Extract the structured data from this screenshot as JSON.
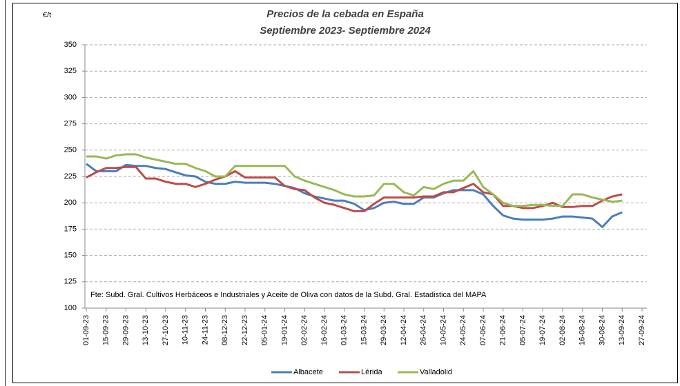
{
  "chart_data": {
    "type": "line",
    "title": "Precios de la cebada en España",
    "subtitle": "Septiembre 2023- Septiembre 2024",
    "y_label": "€/t",
    "annotation": "Fte: Subd. Gral. Cultivos Herbáceos e Industriales y Aceite de Oliva con datos de la Subd. Gral. Estadistica del MAPA",
    "categories": [
      "01-09-23",
      null,
      "15-09-23",
      null,
      "29-09-23",
      null,
      "13-10-23",
      null,
      "27-10-23",
      null,
      "10-11-23",
      null,
      "24-11-23",
      null,
      "08-12-23",
      null,
      "22-12-23",
      null,
      "05-01-24",
      null,
      "19-01-24",
      null,
      "02-02-24",
      null,
      "16-02-24",
      null,
      "01-03-24",
      null,
      "15-03-24",
      null,
      "29-03-24",
      null,
      "12-04-24",
      null,
      "26-04-24",
      null,
      "10-05-24",
      null,
      "24-05-24",
      null,
      "07-06-24",
      null,
      "21-06-24",
      null,
      "05-07-24",
      null,
      "19-07-24",
      null,
      "02-08-24",
      null,
      "16-08-24",
      null,
      "30-08-24",
      null,
      "13-09-24",
      null,
      "27-09-24"
    ],
    "series": [
      {
        "name": "Albacete",
        "color": "#4a7ebb",
        "values": [
          237,
          230,
          230,
          230,
          236,
          235,
          235,
          233,
          232,
          229,
          226,
          225,
          220,
          218,
          218,
          220,
          219,
          219,
          219,
          218,
          216,
          214,
          209,
          206,
          204,
          202,
          202,
          199,
          193,
          195,
          200,
          201,
          199,
          199,
          205,
          205,
          209,
          212,
          212,
          212,
          208,
          197,
          188,
          185,
          184,
          184,
          184,
          185,
          187,
          187,
          186,
          185,
          177,
          187,
          191,
          null,
          null
        ]
      },
      {
        "name": "Lérida",
        "color": "#be4b48",
        "values": [
          224,
          229,
          233,
          233,
          234,
          234,
          223,
          223,
          220,
          218,
          218,
          215,
          218,
          222,
          225,
          230,
          224,
          224,
          224,
          224,
          216,
          213,
          212,
          205,
          200,
          198,
          195,
          192,
          192,
          199,
          205,
          205,
          205,
          205,
          206,
          206,
          210,
          210,
          214,
          218,
          210,
          208,
          197,
          197,
          195,
          195,
          197,
          200,
          196,
          196,
          197,
          197,
          202,
          206,
          208,
          null,
          null
        ]
      },
      {
        "name": "Valladolid",
        "color": "#98b954",
        "values": [
          244,
          244,
          242,
          245,
          246,
          246,
          243,
          241,
          239,
          237,
          237,
          233,
          230,
          225,
          225,
          235,
          235,
          235,
          235,
          235,
          235,
          225,
          221,
          218,
          215,
          212,
          208,
          206,
          206,
          207,
          218,
          218,
          210,
          207,
          215,
          213,
          218,
          221,
          221,
          230,
          215,
          208,
          200,
          197,
          197,
          198,
          198,
          197,
          197,
          208,
          208,
          205,
          203,
          201,
          202,
          null,
          null
        ]
      }
    ],
    "ylim": [
      100,
      350
    ],
    "yticks": [
      100,
      125,
      150,
      175,
      200,
      225,
      250,
      275,
      300,
      325,
      350
    ],
    "grid": true,
    "legend": "bottom"
  }
}
